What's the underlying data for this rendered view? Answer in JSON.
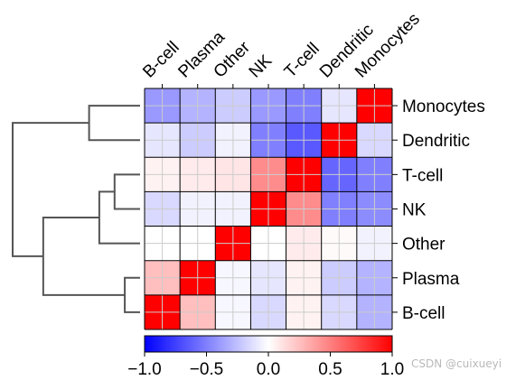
{
  "chart_data": {
    "type": "heatmap",
    "labels": [
      "B-cell",
      "Plasma",
      "Other",
      "NK",
      "T-cell",
      "Dendritic",
      "Monocytes"
    ],
    "row_order": [
      "Monocytes",
      "Dendritic",
      "T-cell",
      "NK",
      "Other",
      "Plasma",
      "B-cell"
    ],
    "col_order": [
      "B-cell",
      "Plasma",
      "Other",
      "NK",
      "T-cell",
      "Dendritic",
      "Monocytes"
    ],
    "matrix": [
      [
        -0.4,
        -0.3,
        -0.2,
        -0.4,
        -0.5,
        -0.1,
        1.0
      ],
      [
        -0.1,
        -0.2,
        -0.05,
        -0.5,
        -0.65,
        1.0,
        -0.15
      ],
      [
        0.05,
        0.08,
        0.1,
        0.45,
        1.0,
        -0.6,
        -0.5
      ],
      [
        -0.15,
        -0.05,
        -0.05,
        1.0,
        0.45,
        -0.5,
        -0.45
      ],
      [
        0.0,
        0.0,
        1.0,
        0.0,
        0.08,
        0.02,
        -0.05
      ],
      [
        0.25,
        1.0,
        -0.03,
        -0.1,
        0.05,
        -0.2,
        -0.3
      ],
      [
        1.0,
        0.25,
        -0.03,
        -0.15,
        0.05,
        -0.15,
        -0.3
      ]
    ],
    "colorbar": {
      "cmap": "bwr",
      "vmin": -1.0,
      "vmax": 1.0,
      "ticks": [
        -1.0,
        -0.5,
        0.0,
        0.5,
        1.0
      ],
      "tick_labels": [
        "−1.0",
        "−0.5",
        "0.0",
        "0.5",
        "1.0"
      ]
    },
    "dendrogram": {
      "side": "left",
      "merges": [
        {
          "a": "B-cell",
          "b": "Plasma",
          "height": 0.3
        },
        {
          "a": "NK",
          "b": "T-cell",
          "height": 0.5
        },
        {
          "a": "Other",
          "b": "NK+T-cell",
          "height": 0.8
        },
        {
          "a": "Dendritic",
          "b": "Monocytes",
          "height": 1.0
        },
        {
          "a": "B-cell+Plasma",
          "b": "Other+NK+T-cell",
          "height": 1.9
        },
        {
          "a": "all-lower",
          "b": "Dendritic+Monocytes",
          "height": 2.5
        }
      ]
    },
    "grid": true,
    "title": "",
    "xlabel": "",
    "ylabel": ""
  },
  "watermark": "CSDN @cuixueyi"
}
